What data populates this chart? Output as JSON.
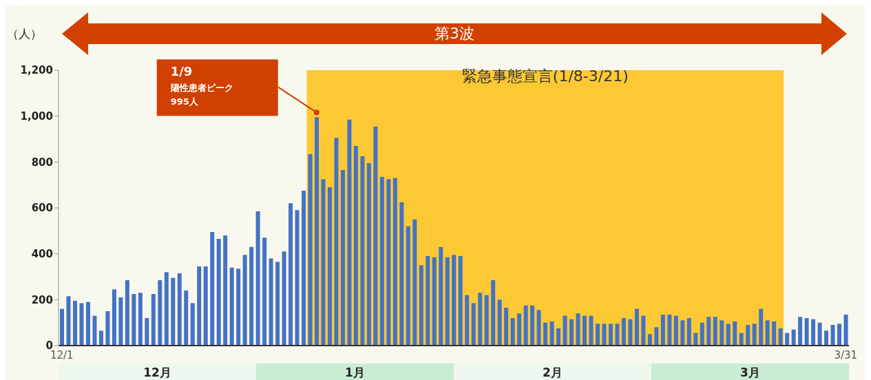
{
  "chart_data": {
    "type": "bar",
    "ylabel": "（人）",
    "color": "#4472c4",
    "categories": [
      "12/1",
      null,
      null,
      null,
      null,
      null,
      null,
      null,
      null,
      null,
      null,
      null,
      null,
      null,
      null,
      null,
      null,
      null,
      null,
      null,
      null,
      null,
      null,
      null,
      null,
      null,
      null,
      null,
      null,
      null,
      null,
      null,
      null,
      null,
      null,
      null,
      null,
      null,
      null,
      null,
      null,
      null,
      null,
      null,
      null,
      null,
      null,
      null,
      null,
      null,
      null,
      null,
      null,
      null,
      null,
      null,
      null,
      null,
      null,
      null,
      null,
      null,
      null,
      null,
      null,
      null,
      null,
      null,
      null,
      null,
      null,
      null,
      null,
      null,
      null,
      null,
      null,
      null,
      null,
      null,
      null,
      null,
      null,
      null,
      null,
      null,
      null,
      null,
      null,
      null,
      null,
      null,
      null,
      null,
      null,
      null,
      null,
      null,
      null,
      null,
      null,
      null,
      null,
      null,
      null,
      null,
      null,
      null,
      null,
      null,
      null,
      null,
      null,
      null,
      null,
      null,
      null,
      null,
      null,
      null,
      "3/31"
    ],
    "values": [
      160,
      215,
      195,
      185,
      190,
      130,
      65,
      150,
      245,
      210,
      285,
      225,
      230,
      120,
      225,
      285,
      320,
      295,
      315,
      240,
      185,
      345,
      345,
      495,
      465,
      480,
      340,
      335,
      395,
      430,
      585,
      470,
      380,
      365,
      410,
      620,
      590,
      675,
      835,
      995,
      725,
      690,
      905,
      765,
      985,
      870,
      825,
      795,
      955,
      735,
      725,
      730,
      625,
      520,
      550,
      350,
      390,
      385,
      430,
      385,
      395,
      390,
      220,
      185,
      230,
      220,
      285,
      200,
      165,
      120,
      140,
      175,
      175,
      155,
      100,
      105,
      75,
      130,
      115,
      140,
      130,
      130,
      95,
      95,
      95,
      95,
      120,
      115,
      160,
      130,
      50,
      80,
      135,
      135,
      130,
      110,
      120,
      55,
      100,
      125,
      125,
      110,
      95,
      105,
      55,
      90,
      95,
      160,
      110,
      105,
      75,
      55,
      70,
      125,
      120,
      115,
      100,
      65,
      90,
      95,
      135
    ],
    "ylim": [
      0,
      1200
    ],
    "yticks": [
      0,
      200,
      400,
      600,
      800,
      {
        "value": 1000,
        "label": "1,000"
      },
      {
        "value": 1200,
        "label": "1,200"
      }
    ],
    "annotations": [
      "第3波",
      "1/9\n陽性患者ピーク\n995人",
      "緊急事態宣言(1/8-3/21)",
      "12月",
      "1月",
      "2月",
      "3月"
    ]
  }
}
